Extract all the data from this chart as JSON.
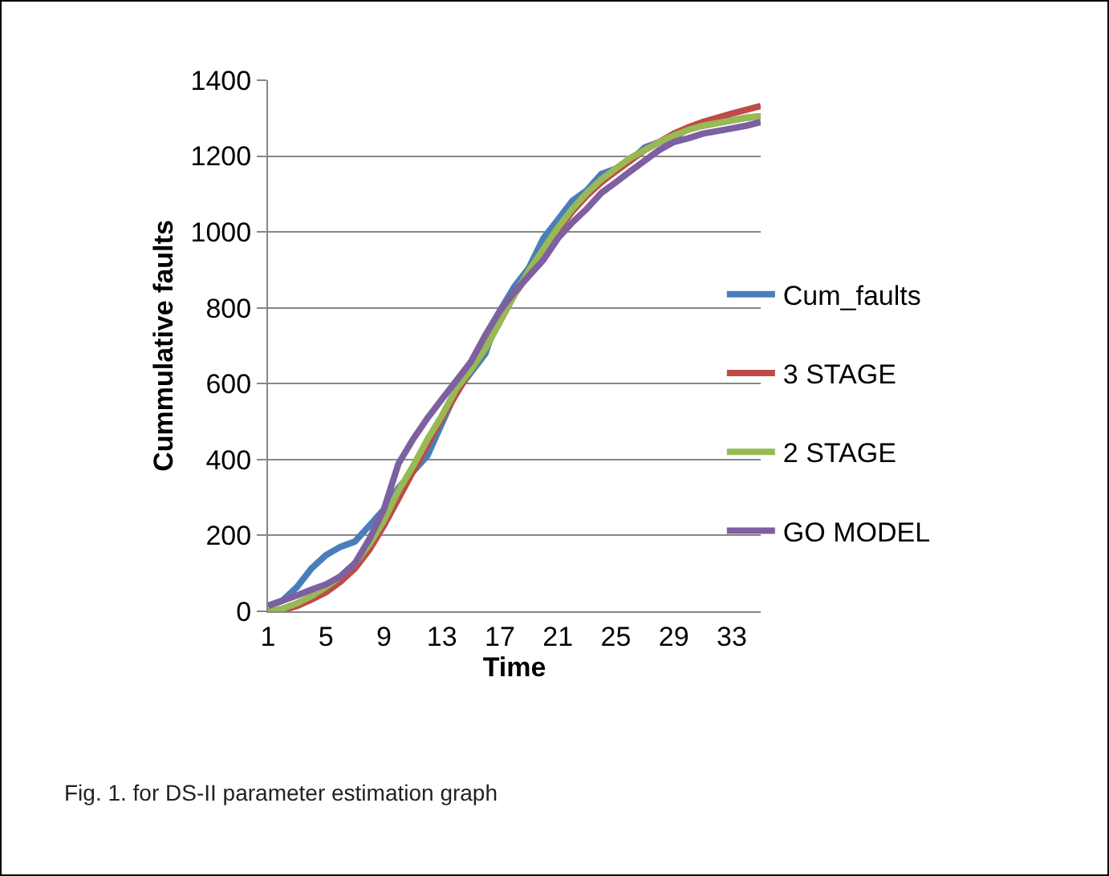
{
  "chart_data": {
    "type": "line",
    "xlabel": "Time",
    "ylabel": "Cummulative faults",
    "categories": [
      "1",
      null,
      null,
      null,
      "5",
      null,
      null,
      null,
      "9",
      null,
      null,
      null,
      "13",
      null,
      null,
      null,
      "17",
      null,
      null,
      null,
      "21",
      null,
      null,
      null,
      "25",
      null,
      null,
      null,
      "29",
      null,
      null,
      null,
      "33",
      null,
      null
    ],
    "series": [
      {
        "name": "Cum_faults",
        "color": "#4a7ebb",
        "values": [
          15,
          28,
          64,
          113,
          148,
          170,
          184,
          226,
          269,
          325,
          368,
          410,
          495,
          580,
          629,
          679,
          792,
          856,
          905,
          983,
          1032,
          1082,
          1110,
          1153,
          1167,
          1188,
          1223,
          1237,
          1247,
          1273,
          1280,
          1287,
          1294,
          1301,
          1305
        ]
      },
      {
        "name": "3 STAGE",
        "color": "#be4b48",
        "values": [
          0,
          3,
          14,
          31,
          50,
          78,
          113,
          163,
          226,
          297,
          368,
          438,
          509,
          573,
          636,
          693,
          764,
          834,
          891,
          948,
          1004,
          1054,
          1096,
          1131,
          1160,
          1188,
          1216,
          1237,
          1259,
          1276,
          1290,
          1301,
          1312,
          1322,
          1332
        ]
      },
      {
        "name": "2 STAGE",
        "color": "#98b954",
        "values": [
          0,
          7,
          21,
          40,
          64,
          92,
          127,
          177,
          240,
          318,
          382,
          453,
          516,
          587,
          636,
          693,
          764,
          834,
          898,
          955,
          1011,
          1061,
          1103,
          1138,
          1167,
          1195,
          1216,
          1237,
          1254,
          1269,
          1280,
          1287,
          1294,
          1301,
          1305
        ]
      },
      {
        "name": "GO MODEL",
        "color": "#7d60a0",
        "values": [
          14,
          28,
          42,
          57,
          71,
          92,
          127,
          191,
          269,
          389,
          453,
          509,
          559,
          608,
          658,
          728,
          792,
          841,
          884,
          926,
          983,
          1025,
          1061,
          1103,
          1131,
          1160,
          1188,
          1216,
          1237,
          1247,
          1259,
          1266,
          1273,
          1280,
          1290
        ]
      }
    ],
    "ylim": [
      0,
      1400
    ],
    "yticks": [
      0,
      200,
      400,
      600,
      800,
      1000,
      1200,
      1400
    ],
    "grid": "y",
    "legend": "right",
    "annotations": [
      "Fig. 1. for DS-II parameter estimation graph"
    ]
  }
}
